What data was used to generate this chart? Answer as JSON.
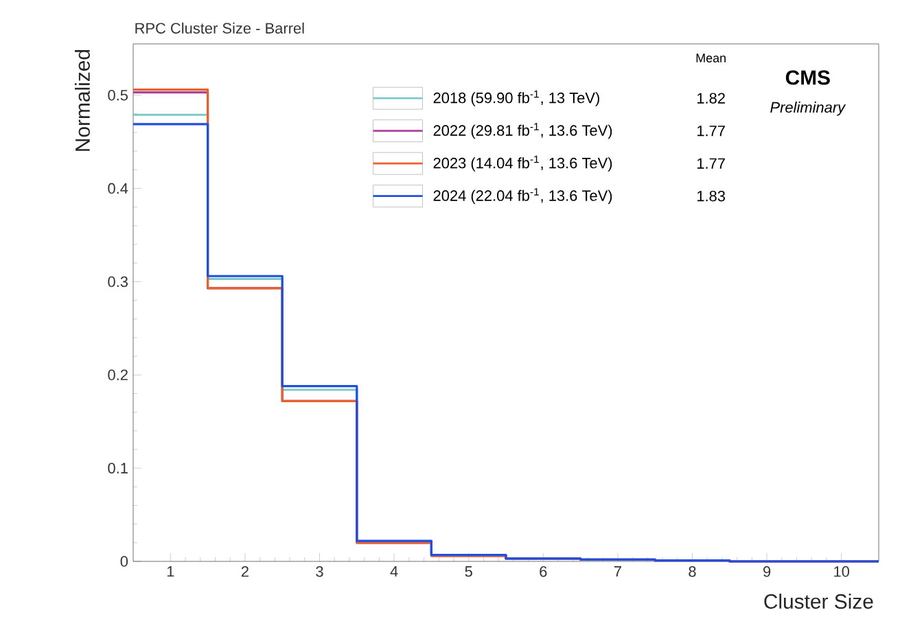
{
  "chart_data": {
    "type": "histogram",
    "title": "RPC Cluster Size - Barrel",
    "xlabel": "Cluster Size",
    "ylabel": "Normalized",
    "bins": [
      0.5,
      1.5,
      2.5,
      3.5,
      4.5,
      5.5,
      6.5,
      7.5,
      8.5,
      9.5,
      10.5
    ],
    "series": [
      {
        "name": "2018 (59.90 fb$^{-1}$, 13 TeV)",
        "color": "#7fc8c8",
        "values": [
          0.479,
          0.303,
          0.184,
          0.021,
          0.006,
          0.003,
          0.002,
          0.001,
          0,
          0
        ]
      },
      {
        "name": "2022 (29.81 fb$^{-1}$, 13.6 TeV)",
        "color": "#b040a0",
        "values": [
          0.503,
          0.293,
          0.172,
          0.02,
          0.006,
          0.003,
          0.002,
          0.001,
          0,
          0
        ]
      },
      {
        "name": "2023 (14.04 fb$^{-1}$, 13.6 TeV)",
        "color": "#e8602c",
        "values": [
          0.506,
          0.293,
          0.172,
          0.02,
          0.006,
          0.003,
          0.002,
          0.001,
          0,
          0
        ]
      },
      {
        "name": "2024 (22.04 fb$^{-1}$, 13.6 TeV)",
        "color": "#1f4fe0",
        "values": [
          0.469,
          0.306,
          0.188,
          0.022,
          0.007,
          0.003,
          0.002,
          0.001,
          0,
          0
        ]
      }
    ],
    "xlim": [
      0.5,
      10.5
    ],
    "xticks": [
      1,
      2,
      3,
      4,
      5,
      6,
      7,
      8,
      9,
      10
    ],
    "ylim": [
      0,
      0.555
    ],
    "yticks": [
      0,
      0.1,
      0.2,
      0.3,
      0.4,
      0.5
    ],
    "legend": "top right",
    "legend_title": "Mean",
    "annotations": [
      "1.82",
      "1.77",
      "1.77",
      "1.83",
      "CMS",
      "*Preliminary*"
    ]
  }
}
